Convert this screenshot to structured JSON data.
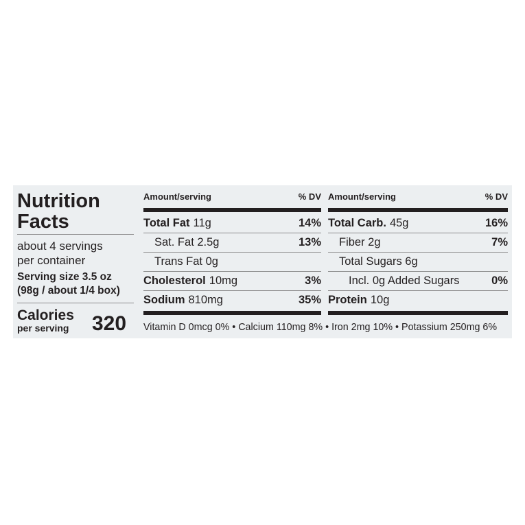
{
  "title": [
    "Nutrition",
    "Facts"
  ],
  "servings": [
    "about 4 servings",
    "per container"
  ],
  "serving_size": [
    "Serving size 3.5 oz",
    "(98g / about 1/4 box)"
  ],
  "calories": {
    "label": "Calories",
    "sublabel": "per serving",
    "value": "320"
  },
  "columns": [
    {
      "header": {
        "amount": "Amount/serving",
        "dv": "% DV"
      },
      "rows": [
        {
          "name": "Total Fat",
          "amount": "11g",
          "dv": "14%"
        },
        {
          "name": "Sat. Fat 2.5g",
          "dv": "13%"
        },
        {
          "name": "Trans Fat 0g"
        },
        {
          "name": "Cholesterol",
          "amount": "10mg",
          "dv": "3%"
        },
        {
          "name": "Sodium",
          "amount": "810mg",
          "dv": "35%"
        }
      ]
    },
    {
      "header": {
        "amount": "Amount/serving",
        "dv": "% DV"
      },
      "rows": [
        {
          "name": "Total Carb.",
          "amount": "45g",
          "dv": "16%"
        },
        {
          "name": "Fiber 2g",
          "dv": "7%"
        },
        {
          "name": "Total Sugars 6g"
        },
        {
          "name": "Incl. 0g Added Sugars",
          "dv": "0%"
        },
        {
          "name": "Protein",
          "amount": "10g"
        }
      ]
    }
  ],
  "footer": "Vitamin D 0mcg 0% • Calcium 110mg 8% • Iron 2mg 10% • Potassium 250mg 6%"
}
